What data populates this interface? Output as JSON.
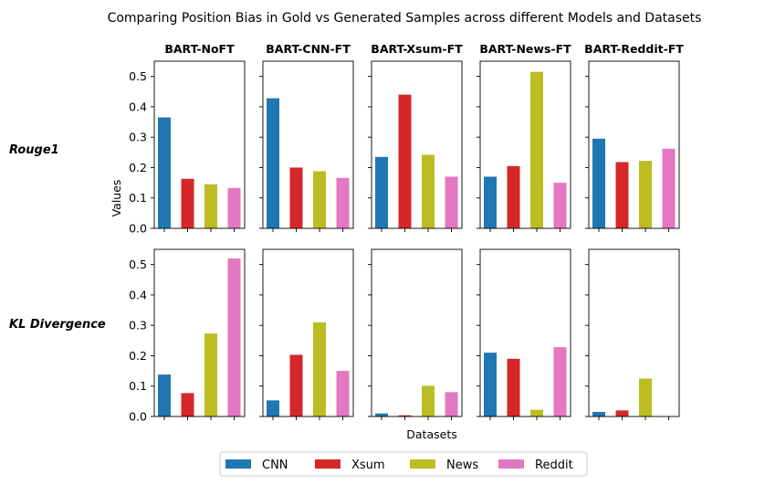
{
  "chart_data": {
    "type": "bar",
    "title": "Comparing Position Bias in Gold vs Generated Samples across different Models and Datasets",
    "xlabel": "Datasets",
    "ylabel": "Values",
    "ylim": [
      0,
      0.55
    ],
    "yticks": [
      "0.0",
      "0.1",
      "0.2",
      "0.3",
      "0.4",
      "0.5"
    ],
    "grid": false,
    "legend_position": "bottom-center",
    "models": [
      "BART-NoFT",
      "BART-CNN-FT",
      "BART-Xsum-FT",
      "BART-News-FT",
      "BART-Reddit-FT"
    ],
    "metrics": [
      "Rouge1",
      "KL Divergence"
    ],
    "categories": [
      "CNN",
      "Xsum",
      "News",
      "Reddit"
    ],
    "colors": [
      "#1f77b4",
      "#d62728",
      "#bcbd22",
      "#e377c2"
    ],
    "values": {
      "Rouge1": [
        [
          0.365,
          0.163,
          0.145,
          0.133
        ],
        [
          0.428,
          0.2,
          0.188,
          0.166
        ],
        [
          0.235,
          0.44,
          0.242,
          0.17
        ],
        [
          0.17,
          0.205,
          0.515,
          0.15
        ],
        [
          0.295,
          0.218,
          0.222,
          0.262
        ]
      ],
      "KL Divergence": [
        [
          0.138,
          0.077,
          0.273,
          0.52
        ],
        [
          0.053,
          0.203,
          0.31,
          0.15
        ],
        [
          0.01,
          0.004,
          0.101,
          0.08
        ],
        [
          0.21,
          0.19,
          0.022,
          0.228
        ],
        [
          0.015,
          0.02,
          0.125,
          0.0
        ]
      ]
    }
  }
}
